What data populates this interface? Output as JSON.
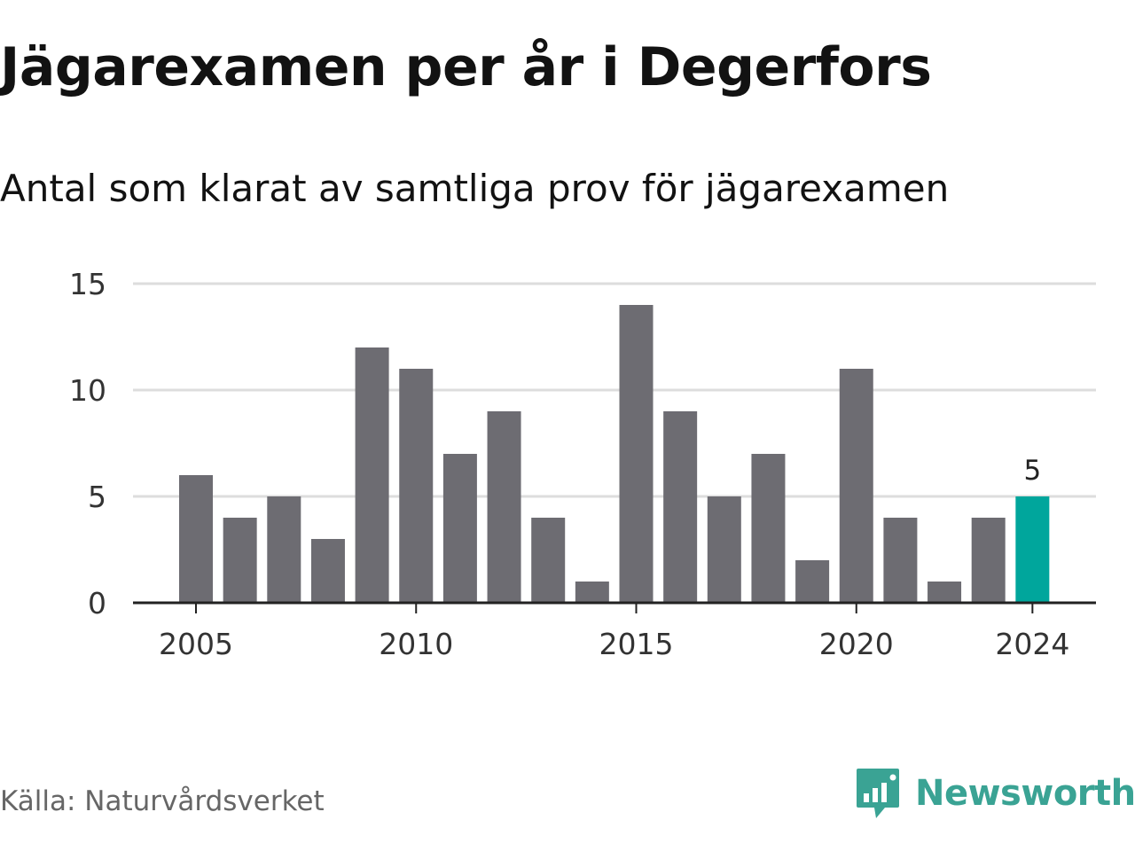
{
  "header": {
    "title": "Jägarexamen per år i Degerfors",
    "subtitle": "Antal som klarat av samtliga prov för jägarexamen"
  },
  "footer": {
    "source": "Källa: Naturvårdsverket",
    "brand": "Newsworthy",
    "brand_icon": "newsworthy-logo-icon"
  },
  "colors": {
    "bar": "#6d6c72",
    "highlight": "#00a69c",
    "grid": "#dddddd",
    "axis": "#222222",
    "brand": "#3aa394"
  },
  "chart_data": {
    "type": "bar",
    "title": "Jägarexamen per år i Degerfors",
    "subtitle": "Antal som klarat av samtliga prov för jägarexamen",
    "xlabel": "",
    "ylabel": "",
    "x": [
      2005,
      2006,
      2007,
      2008,
      2009,
      2010,
      2011,
      2012,
      2013,
      2014,
      2015,
      2016,
      2017,
      2018,
      2019,
      2020,
      2021,
      2022,
      2023,
      2024
    ],
    "values": [
      6,
      4,
      5,
      3,
      12,
      11,
      7,
      9,
      4,
      1,
      14,
      9,
      5,
      7,
      2,
      11,
      4,
      1,
      4,
      5
    ],
    "xticks": [
      2005,
      2010,
      2015,
      2020,
      2024
    ],
    "yticks": [
      0,
      5,
      10,
      15
    ],
    "ylim": [
      0,
      15
    ],
    "grid": true,
    "highlight": {
      "x": 2024,
      "label": "5"
    }
  }
}
